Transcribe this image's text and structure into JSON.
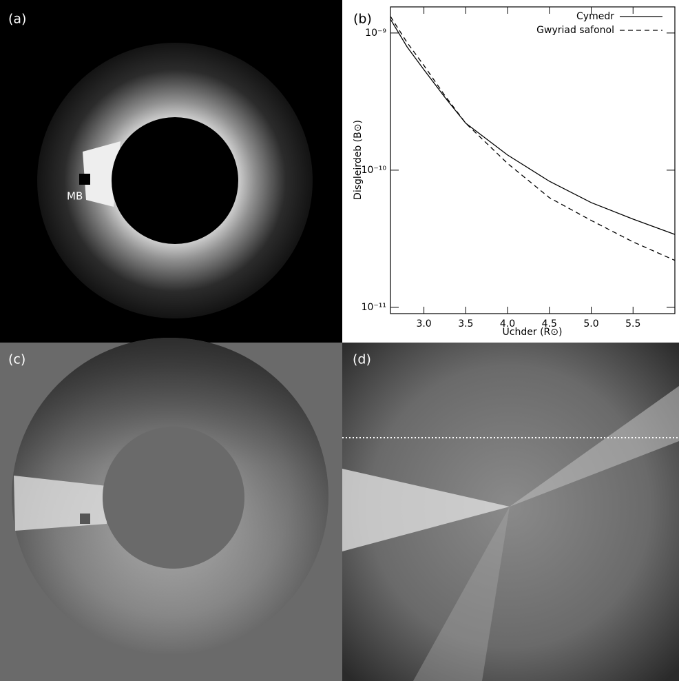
{
  "panels": {
    "a": {
      "label": "(a)",
      "annotation": "MB"
    },
    "c": {
      "label": "(c)"
    },
    "d": {
      "label": "(d)"
    }
  },
  "chart_data": {
    "type": "line",
    "panel_label": "(b)",
    "x_label": "Uchder (R⊙)",
    "y_label": "Disgleirdeb  (B⊙)",
    "x": [
      2.6,
      2.8,
      3.0,
      3.25,
      3.5,
      4.0,
      4.5,
      5.0,
      5.5,
      6.0
    ],
    "series": [
      {
        "name": "Cymedr",
        "color": "#000000",
        "dash": "solid",
        "values": [
          1.26e-09,
          7.9e-10,
          5.4e-10,
          3.4e-10,
          2.2e-10,
          1.29e-10,
          8.3e-11,
          5.8e-11,
          4.4e-11,
          3.4e-11
        ]
      },
      {
        "name": "Gwyriad safonol",
        "color": "#000000",
        "dash": "dashed",
        "values": [
          1.32e-09,
          8.5e-10,
          5.8e-10,
          3.5e-10,
          2.2e-10,
          1.12e-10,
          6.3e-11,
          4.3e-11,
          3e-11,
          2.2e-11
        ]
      }
    ],
    "xlim": [
      2.6,
      6.0
    ],
    "xticks": [
      {
        "value": 3,
        "label": "3.0"
      },
      3.5,
      {
        "value": 4,
        "label": "4.0"
      },
      4.5,
      {
        "value": 5,
        "label": "5.0"
      },
      5.5
    ],
    "ylim": [
      9e-12,
      1.55e-09
    ],
    "yscale": "log",
    "yticks": [
      {
        "value": 1e-11,
        "label": "10⁻¹¹"
      },
      {
        "value": 1e-10,
        "label": "10⁻¹⁰"
      },
      {
        "value": 1e-09,
        "label": "10⁻⁹"
      }
    ],
    "legend": "upper right"
  }
}
